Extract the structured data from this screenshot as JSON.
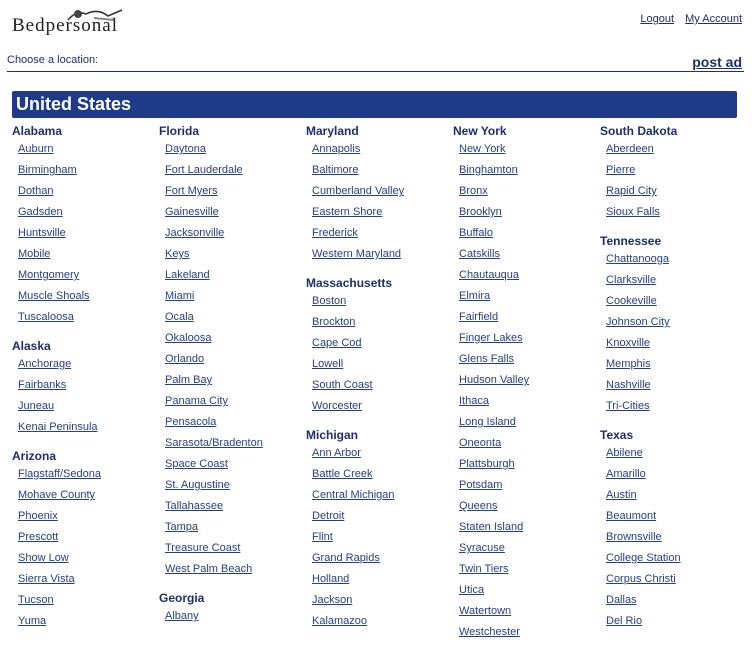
{
  "header": {
    "logo_text": "Bedpersonal",
    "logout": "Logout",
    "my_account": "My Account"
  },
  "subheader": {
    "choose_location": "Choose a location:",
    "post_ad": "post ad"
  },
  "country": "United States",
  "colors": {
    "banner": "#203a8a",
    "text": "#1c2f6e",
    "link": "#26408a"
  },
  "columns": [
    [
      {
        "state": "Alabama",
        "cities": [
          "Auburn",
          "Birmingham",
          "Dothan",
          "Gadsden",
          "Huntsville",
          "Mobile",
          "Montgomery",
          "Muscle Shoals",
          "Tuscaloosa"
        ]
      },
      {
        "state": "Alaska",
        "cities": [
          "Anchorage",
          "Fairbanks",
          "Juneau",
          "Kenai Peninsula"
        ]
      },
      {
        "state": "Arizona",
        "cities": [
          "Flagstaff/Sedona",
          "Mohave County",
          "Phoenix",
          "Prescott",
          "Show Low",
          "Sierra Vista",
          "Tucson",
          "Yuma"
        ]
      }
    ],
    [
      {
        "state": "Florida",
        "cities": [
          "Daytona",
          "Fort Lauderdale",
          "Fort Myers",
          "Gainesville",
          "Jacksonville",
          "Keys",
          "Lakeland",
          "Miami",
          "Ocala",
          "Okaloosa",
          "Orlando",
          "Palm Bay",
          "Panama City",
          "Pensacola",
          "Sarasota/Bradenton",
          "Space Coast",
          "St. Augustine",
          "Tallahassee",
          "Tampa",
          "Treasure Coast",
          "West Palm Beach"
        ]
      },
      {
        "state": "Georgia",
        "cities": [
          "Albany"
        ]
      }
    ],
    [
      {
        "state": "Maryland",
        "cities": [
          "Annapolis",
          "Baltimore",
          "Cumberland Valley",
          "Eastern Shore",
          "Frederick",
          "Western Maryland"
        ]
      },
      {
        "state": "Massachusetts",
        "cities": [
          "Boston",
          "Brockton",
          "Cape Cod",
          "Lowell",
          "South Coast",
          "Worcester"
        ]
      },
      {
        "state": "Michigan",
        "cities": [
          "Ann Arbor",
          "Battle Creek",
          "Central Michigan",
          "Detroit",
          "Flint",
          "Grand Rapids",
          "Holland",
          "Jackson",
          "Kalamazoo"
        ]
      }
    ],
    [
      {
        "state": "New York",
        "cities": [
          "New York",
          "Binghamton",
          "Bronx",
          "Brooklyn",
          "Buffalo",
          "Catskills",
          "Chautauqua",
          "Elmira",
          "Fairfield",
          "Finger Lakes",
          "Glens Falls",
          "Hudson Valley",
          "Ithaca",
          "Long Island",
          "Oneonta",
          "Plattsburgh",
          "Potsdam",
          "Queens",
          "Staten Island",
          "Syracuse",
          "Twin Tiers",
          "Utica",
          "Watertown",
          "Westchester"
        ]
      }
    ],
    [
      {
        "state": "South Dakota",
        "cities": [
          "Aberdeen",
          "Pierre",
          "Rapid City",
          "Sioux Falls"
        ]
      },
      {
        "state": "Tennessee",
        "cities": [
          "Chattanooga",
          "Clarksville",
          "Cookeville",
          "Johnson City",
          "Knoxville",
          "Memphis",
          "Nashville",
          "Tri-Cities"
        ]
      },
      {
        "state": "Texas",
        "cities": [
          "Abilene",
          "Amarillo",
          "Austin",
          "Beaumont",
          "Brownsville",
          "College Station",
          "Corpus Christi",
          "Dallas",
          "Del Rio"
        ]
      }
    ]
  ]
}
